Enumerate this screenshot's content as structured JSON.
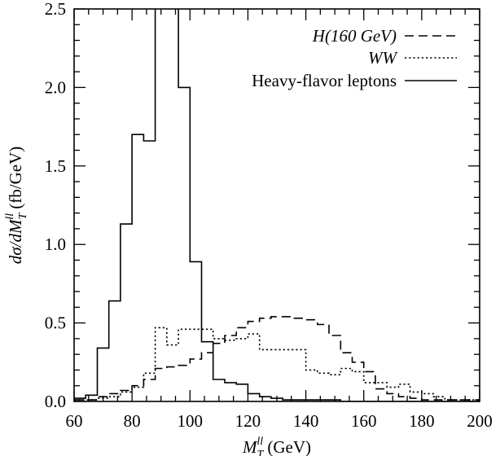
{
  "chart_data": {
    "type": "line",
    "step": true,
    "title": "",
    "xlabel_parts": [
      "M",
      "T",
      "ll",
      " (GeV)"
    ],
    "ylabel_parts": [
      "dσ/dM",
      "T",
      "ll",
      " (fb/GeV)"
    ],
    "xlim": [
      60,
      200
    ],
    "ylim": [
      0,
      2.5
    ],
    "xticks": [
      "60",
      "80",
      "100",
      "120",
      "140",
      "160",
      "180",
      "200"
    ],
    "yticks": [
      "0.0",
      "0.5",
      "1.0",
      "1.5",
      "2.0",
      "2.5"
    ],
    "bin_edges": [
      60,
      64,
      68,
      72,
      76,
      80,
      84,
      88,
      92,
      96,
      100,
      104,
      108,
      112,
      116,
      120,
      124,
      128,
      132,
      136,
      140,
      144,
      148,
      152,
      156,
      160,
      164,
      168,
      172,
      176,
      180,
      184,
      188,
      192,
      196,
      200
    ],
    "legend_position": "top-right",
    "series": [
      {
        "name": "H(160 GeV)",
        "style": "dashed",
        "values": [
          0.01,
          0.01,
          0.03,
          0.05,
          0.07,
          0.1,
          0.14,
          0.21,
          0.22,
          0.23,
          0.27,
          0.31,
          0.37,
          0.42,
          0.47,
          0.51,
          0.53,
          0.54,
          0.54,
          0.53,
          0.52,
          0.49,
          0.42,
          0.31,
          0.25,
          0.19,
          0.08,
          0.05,
          0.03,
          0.02,
          0.01,
          0.01,
          0.01,
          0.01,
          0.01
        ]
      },
      {
        "name": "WW",
        "style": "dotted",
        "values": [
          0.01,
          0.01,
          0.02,
          0.03,
          0.06,
          0.09,
          0.18,
          0.47,
          0.36,
          0.46,
          0.46,
          0.46,
          0.4,
          0.39,
          0.4,
          0.43,
          0.33,
          0.33,
          0.33,
          0.33,
          0.2,
          0.18,
          0.17,
          0.21,
          0.19,
          0.12,
          0.12,
          0.09,
          0.11,
          0.06,
          0.05,
          0.03,
          0.01,
          0.01,
          0.01
        ]
      },
      {
        "name": "Heavy-flavor leptons",
        "style": "solid",
        "values": [
          0.02,
          0.04,
          0.34,
          0.64,
          1.13,
          1.7,
          1.66,
          2.55,
          2.55,
          2.0,
          0.89,
          0.38,
          0.14,
          0.12,
          0.11,
          0.05,
          0.03,
          0.02,
          0.01,
          0.01,
          0.01,
          0.01,
          0.01,
          0.0,
          0.0,
          0.0,
          0.0,
          0.0,
          0.0,
          0.0,
          0.0,
          0.0,
          0.0,
          0.0,
          0.0
        ]
      }
    ]
  }
}
